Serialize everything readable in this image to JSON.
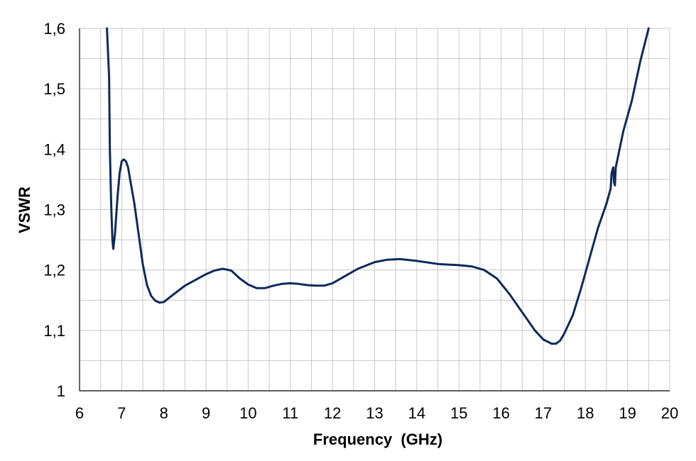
{
  "chart_data": {
    "type": "line",
    "title": "",
    "xlabel": "Frequency  (GHz)",
    "ylabel": "VSWR",
    "xlim": [
      6,
      20
    ],
    "ylim": [
      1,
      1.6
    ],
    "x_ticks": [
      "6",
      "7",
      "8",
      "9",
      "10",
      "11",
      "12",
      "13",
      "14",
      "15",
      "16",
      "17",
      "18",
      "19",
      "20"
    ],
    "y_ticks": [
      "1",
      "1,1",
      "1,2",
      "1,3",
      "1,4",
      "1,5",
      "1,6"
    ],
    "grid": true,
    "legend": "none",
    "line_color": "#0f2a5a",
    "series": [
      {
        "x": [
          6.65,
          6.7,
          6.72,
          6.75,
          6.78,
          6.8,
          6.84,
          6.9,
          6.95,
          7.0,
          7.05,
          7.1,
          7.15,
          7.2,
          7.3,
          7.4,
          7.5,
          7.6,
          7.7,
          7.8,
          7.9,
          8.0,
          8.2,
          8.5,
          9.0,
          9.2,
          9.4,
          9.6,
          9.8,
          10.0,
          10.2,
          10.4,
          10.6,
          10.8,
          11.0,
          11.2,
          11.4,
          11.6,
          11.8,
          12.0,
          12.3,
          12.6,
          13.0,
          13.3,
          13.6,
          14.0,
          14.5,
          15.0,
          15.3,
          15.6,
          15.9,
          16.2,
          16.5,
          16.8,
          17.0,
          17.2,
          17.3,
          17.4,
          17.5,
          17.7,
          17.9,
          18.1,
          18.3,
          18.5,
          18.6,
          18.62,
          18.66,
          18.68,
          18.7,
          18.72,
          18.75,
          18.9,
          19.1,
          19.3,
          19.5
        ],
        "values": [
          1.6,
          1.52,
          1.4,
          1.31,
          1.25,
          1.235,
          1.26,
          1.32,
          1.36,
          1.38,
          1.383,
          1.38,
          1.37,
          1.35,
          1.31,
          1.26,
          1.21,
          1.175,
          1.157,
          1.149,
          1.146,
          1.147,
          1.158,
          1.174,
          1.193,
          1.199,
          1.202,
          1.199,
          1.186,
          1.176,
          1.17,
          1.17,
          1.174,
          1.177,
          1.178,
          1.177,
          1.175,
          1.174,
          1.174,
          1.178,
          1.19,
          1.202,
          1.213,
          1.217,
          1.218,
          1.215,
          1.21,
          1.208,
          1.206,
          1.2,
          1.186,
          1.16,
          1.13,
          1.1,
          1.085,
          1.078,
          1.078,
          1.083,
          1.095,
          1.125,
          1.17,
          1.22,
          1.27,
          1.31,
          1.335,
          1.36,
          1.37,
          1.345,
          1.34,
          1.37,
          1.38,
          1.43,
          1.48,
          1.545,
          1.6
        ]
      }
    ]
  }
}
